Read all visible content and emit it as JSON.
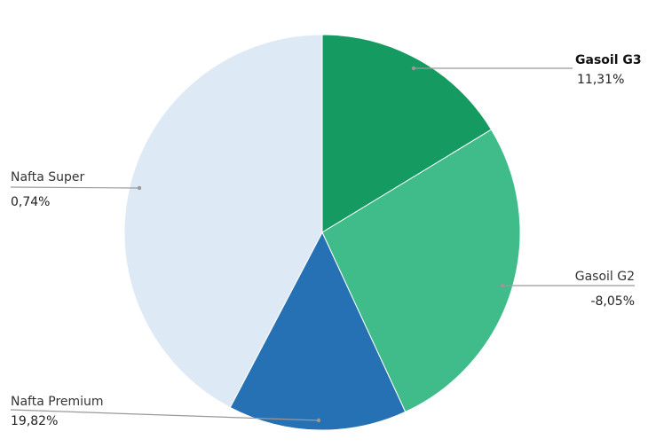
{
  "chart_data": {
    "type": "pie",
    "categories": [
      "Gasoil G3",
      "Gasoil G2",
      "Nafta Premium",
      "Nafta Super"
    ],
    "values": [
      16.3,
      26.8,
      14.6,
      42.3
    ],
    "colors": [
      "#159b62",
      "#3fbc89",
      "#2671b4",
      "#ddeaf6"
    ],
    "slice_notes": [
      "11,31%",
      "-8,05%",
      "19,82%",
      "0,74%"
    ]
  }
}
